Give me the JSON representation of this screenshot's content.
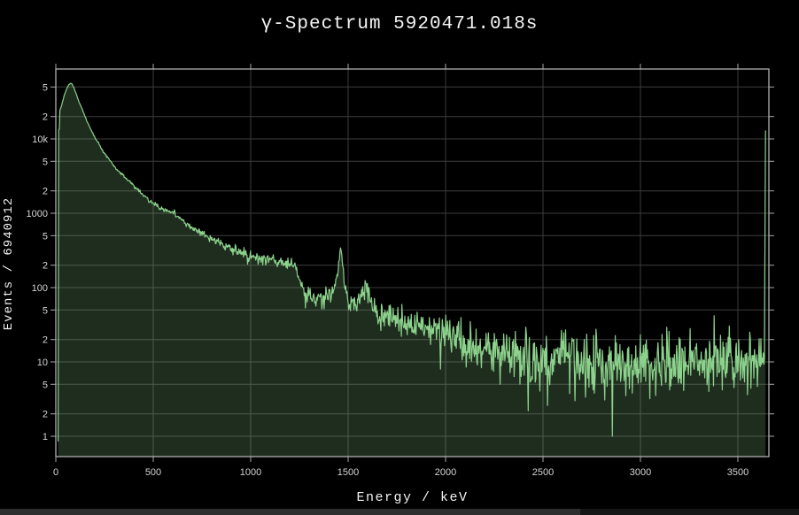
{
  "chart": {
    "title": "γ-Spectrum 5920471.018s",
    "xlabel": "Energy / keV",
    "ylabel": "Events / 6940912"
  },
  "chart_data": {
    "type": "area",
    "title": "γ-Spectrum 5920471.018s",
    "xlabel": "Energy / keV",
    "ylabel": "Events / 6940912",
    "x_axis": {
      "scale": "linear",
      "range": [
        0,
        3660
      ],
      "ticks": [
        0,
        500,
        1000,
        1500,
        2000,
        2500,
        3000,
        3500
      ]
    },
    "y_axis": {
      "scale": "log",
      "range": [
        0.53,
        87000
      ],
      "ticks": [
        {
          "v": 1,
          "label": "1"
        },
        {
          "v": 2,
          "label": "2"
        },
        {
          "v": 5,
          "label": "5"
        },
        {
          "v": 10,
          "label": "10"
        },
        {
          "v": 20,
          "label": "2"
        },
        {
          "v": 50,
          "label": "5"
        },
        {
          "v": 100,
          "label": "100"
        },
        {
          "v": 200,
          "label": "2"
        },
        {
          "v": 500,
          "label": "5"
        },
        {
          "v": 1000,
          "label": "1000"
        },
        {
          "v": 2000,
          "label": "2"
        },
        {
          "v": 5000,
          "label": "5"
        },
        {
          "v": 10000,
          "label": "10k"
        },
        {
          "v": 20000,
          "label": "2"
        },
        {
          "v": 50000,
          "label": "5"
        }
      ]
    },
    "grid": true,
    "legend": "none",
    "series": [
      {
        "name": "gamma-spectrum",
        "bin_width_kev": 3,
        "control_points": [
          [
            12,
            0.85
          ],
          [
            13,
            13200
          ],
          [
            19,
            13500
          ],
          [
            21,
            24000
          ],
          [
            30,
            28500
          ],
          [
            45,
            40000
          ],
          [
            60,
            50000
          ],
          [
            68,
            54000
          ],
          [
            77,
            56000
          ],
          [
            84,
            54500
          ],
          [
            92,
            49500
          ],
          [
            105,
            40000
          ],
          [
            120,
            31000
          ],
          [
            135,
            25500
          ],
          [
            150,
            20000
          ],
          [
            165,
            16000
          ],
          [
            180,
            13200
          ],
          [
            200,
            10500
          ],
          [
            220,
            8600
          ],
          [
            240,
            7000
          ],
          [
            260,
            5900
          ],
          [
            280,
            5000
          ],
          [
            300,
            4300
          ],
          [
            330,
            3500
          ],
          [
            360,
            2950
          ],
          [
            390,
            2500
          ],
          [
            420,
            2100
          ],
          [
            450,
            1750
          ],
          [
            480,
            1500
          ],
          [
            500,
            1380
          ],
          [
            530,
            1220
          ],
          [
            560,
            1100
          ],
          [
            590,
            1020
          ],
          [
            605,
            1000
          ],
          [
            609,
            1130
          ],
          [
            615,
            950
          ],
          [
            640,
            820
          ],
          [
            670,
            710
          ],
          [
            700,
            640
          ],
          [
            740,
            560
          ],
          [
            780,
            480
          ],
          [
            820,
            430
          ],
          [
            860,
            380
          ],
          [
            900,
            340
          ],
          [
            950,
            300
          ],
          [
            1000,
            262
          ],
          [
            1050,
            245
          ],
          [
            1100,
            235
          ],
          [
            1150,
            222
          ],
          [
            1200,
            210
          ],
          [
            1228,
            200
          ],
          [
            1243,
            130
          ],
          [
            1258,
            105
          ],
          [
            1280,
            90
          ],
          [
            1310,
            78
          ],
          [
            1340,
            70
          ],
          [
            1370,
            70
          ],
          [
            1400,
            80
          ],
          [
            1430,
            92
          ],
          [
            1448,
            150
          ],
          [
            1458,
            320
          ],
          [
            1464,
            330
          ],
          [
            1472,
            200
          ],
          [
            1485,
            100
          ],
          [
            1500,
            72
          ],
          [
            1520,
            62
          ],
          [
            1545,
            64
          ],
          [
            1565,
            75
          ],
          [
            1580,
            105
          ],
          [
            1590,
            120
          ],
          [
            1600,
            95
          ],
          [
            1615,
            68
          ],
          [
            1635,
            50
          ],
          [
            1660,
            45
          ],
          [
            1700,
            42
          ],
          [
            1750,
            37
          ],
          [
            1800,
            33
          ],
          [
            1850,
            30
          ],
          [
            1900,
            28
          ],
          [
            1950,
            25
          ],
          [
            2000,
            22
          ],
          [
            2050,
            20
          ],
          [
            2100,
            18
          ],
          [
            2150,
            16.5
          ],
          [
            2200,
            15
          ],
          [
            2250,
            14
          ],
          [
            2300,
            13
          ],
          [
            2350,
            12
          ],
          [
            2400,
            11.5
          ],
          [
            2450,
            11
          ],
          [
            2500,
            10.5
          ],
          [
            2550,
            10.5
          ],
          [
            2585,
            13
          ],
          [
            2605,
            18
          ],
          [
            2614,
            19
          ],
          [
            2625,
            14
          ],
          [
            2640,
            11
          ],
          [
            2700,
            9.5
          ],
          [
            2800,
            9.3
          ],
          [
            2900,
            9.5
          ],
          [
            3000,
            9.8
          ],
          [
            3100,
            10
          ],
          [
            3200,
            10
          ],
          [
            3300,
            10.2
          ],
          [
            3400,
            10.4
          ],
          [
            3500,
            10
          ],
          [
            3600,
            10
          ],
          [
            3636,
            10
          ],
          [
            3642,
            13000
          ]
        ],
        "peaks_kev": [
          609,
          1461,
          1590,
          2614
        ],
        "compton_edge_kev": 1243,
        "overflow_spike": {
          "energy_kev": 3642,
          "counts": 13000
        },
        "dips": [
          {
            "e": 1975,
            "v": 8.0
          },
          {
            "e": 2280,
            "v": 5.0
          },
          {
            "e": 2425,
            "v": 2.2
          },
          {
            "e": 2523,
            "v": 2.6
          },
          {
            "e": 2665,
            "v": 3.0
          },
          {
            "e": 2855,
            "v": 1.0
          },
          {
            "e": 2958,
            "v": 3.8
          },
          {
            "e": 3048,
            "v": 3.2
          },
          {
            "e": 3150,
            "v": 4.2
          },
          {
            "e": 3350,
            "v": 4.0
          },
          {
            "e": 3480,
            "v": 4.5
          }
        ]
      }
    ],
    "colors": {
      "background": "#000000",
      "line": "#8cd28c",
      "fill": "rgba(140,205,138,0.22)",
      "grid": "#3d3d3d",
      "axis_border": "#b0b0b0",
      "tick": "#a9a9a9",
      "tick_label": "#d4d4d4",
      "text": "#f2f2f2"
    }
  }
}
